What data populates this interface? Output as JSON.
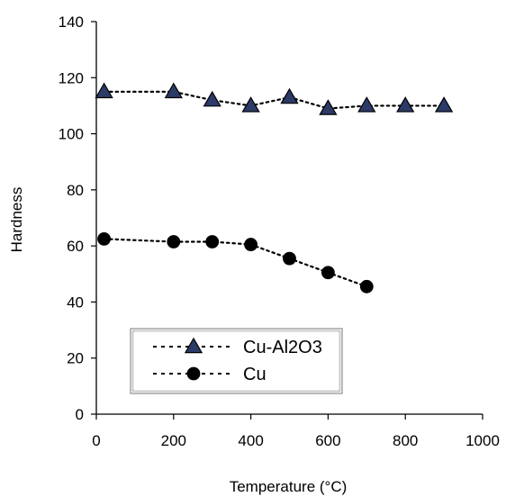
{
  "chart_data": {
    "type": "line",
    "xlabel": "Temperature (°C)",
    "ylabel": "Hardness",
    "xlim": [
      0,
      1000
    ],
    "ylim": [
      0,
      140
    ],
    "x_ticks": [
      0,
      200,
      400,
      600,
      800,
      1000
    ],
    "y_ticks": [
      0,
      20,
      40,
      60,
      80,
      100,
      120,
      140
    ],
    "grid": false,
    "legend_position": "lower-left",
    "series": [
      {
        "name": "Cu-Al2O3",
        "marker": "triangle",
        "marker_color": "#2b3a67",
        "line_style": "dotted",
        "x": [
          20,
          200,
          300,
          400,
          500,
          600,
          700,
          800,
          900
        ],
        "y": [
          115,
          115,
          112,
          110,
          113,
          109,
          110,
          110,
          110
        ]
      },
      {
        "name": "Cu",
        "marker": "circle",
        "marker_color": "#000000",
        "line_style": "dotted",
        "x": [
          20,
          200,
          300,
          400,
          500,
          600,
          700
        ],
        "y": [
          62.5,
          61.5,
          61.5,
          60.5,
          55.5,
          50.5,
          45.5
        ]
      }
    ]
  }
}
